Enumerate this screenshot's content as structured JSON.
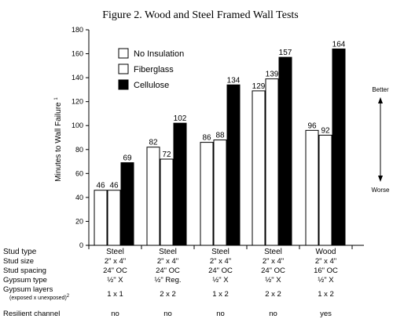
{
  "chart_data": {
    "type": "bar",
    "title": "Figure 2.  Wood and Steel Framed Wall Tests",
    "ylabel": "Minutes to Wall Failure",
    "ylabel_sup": "1",
    "ylim": [
      0,
      180
    ],
    "yticks": [
      0,
      20,
      40,
      60,
      80,
      100,
      120,
      140,
      160,
      180
    ],
    "categories": [
      "Steel",
      "Steel",
      "Steel",
      "Steel",
      "Wood"
    ],
    "series": [
      {
        "name": "No Insulation",
        "color": "#ffffff",
        "values": [
          46,
          82,
          86,
          129,
          96
        ]
      },
      {
        "name": "Fiberglass",
        "color": "#ffffff",
        "values": [
          46,
          72,
          88,
          139,
          92
        ]
      },
      {
        "name": "Cellulose",
        "color": "#000000",
        "values": [
          69,
          102,
          134,
          157,
          164
        ]
      }
    ],
    "legend_position": "top-left",
    "grid": false,
    "arrow_top_label": "Better",
    "arrow_bottom_label": "Worse"
  },
  "table": {
    "rows": [
      {
        "label": "Stud type",
        "values": [
          "Steel",
          "Steel",
          "Steel",
          "Steel",
          "Wood"
        ]
      },
      {
        "label": "Stud size",
        "values": [
          "2\" x 4\"",
          "2\" x 4\"",
          "2\" x 4\"",
          "2\" x 4\"",
          "2\" x 4\""
        ]
      },
      {
        "label": "Stud spacing",
        "values": [
          "24\" OC",
          "24\" OC",
          "24\" OC",
          "24\" OC",
          "16\" OC"
        ]
      },
      {
        "label": "Gypsum type",
        "values": [
          "½\"  X",
          "½\"  Reg.",
          "½\"  X",
          "½\"  X",
          "½\"  X"
        ]
      },
      {
        "label": "Gypsum layers",
        "sublabel": "(exposed x unexposed)",
        "sublabel_sup": "2",
        "values": [
          "1 x 1",
          "2 x 2",
          "1 x 2",
          "2 x 2",
          "1 x 2"
        ]
      },
      {
        "label": "Resilient channel",
        "values": [
          "no",
          "no",
          "no",
          "no",
          "yes"
        ]
      }
    ]
  }
}
